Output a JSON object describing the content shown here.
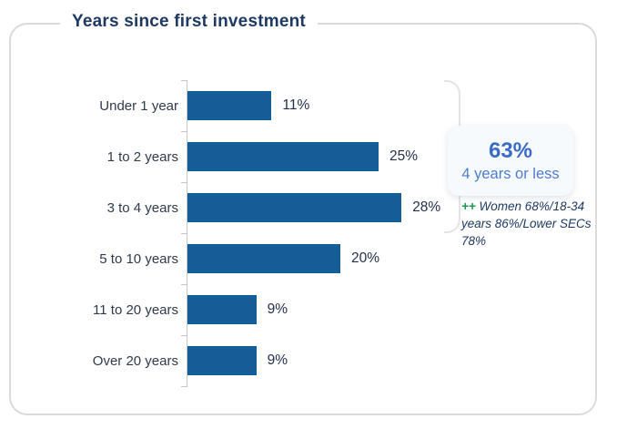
{
  "card": {
    "title": "Years since first investment"
  },
  "chart_data": {
    "type": "bar",
    "orientation": "horizontal",
    "title": "Years since first investment",
    "categories": [
      "Under 1 year",
      "1 to 2 years",
      "3 to 4 years",
      "5 to 10 years",
      "11 to 20 years",
      "Over 20 years"
    ],
    "values": [
      11,
      25,
      28,
      20,
      9,
      9
    ],
    "value_labels": [
      "11%",
      "25%",
      "28%",
      "20%",
      "9%",
      "9%"
    ],
    "xlabel": "",
    "ylabel": "",
    "xlim": [
      0,
      30
    ],
    "grid": false,
    "legend": "none",
    "bar_color": "#155d96"
  },
  "callout": {
    "headline": "63%",
    "subtitle": "4 years or less"
  },
  "annotation": {
    "marker": "++",
    "text": "Women 68%/18-34 years 86%/Lower SECs 78%"
  },
  "colors": {
    "bar_blue": "#155d96",
    "title_navy": "#1e3a63",
    "callout_blue": "#3a6bc5",
    "annotation_green": "#1c9750",
    "card_border": "#dadada"
  }
}
